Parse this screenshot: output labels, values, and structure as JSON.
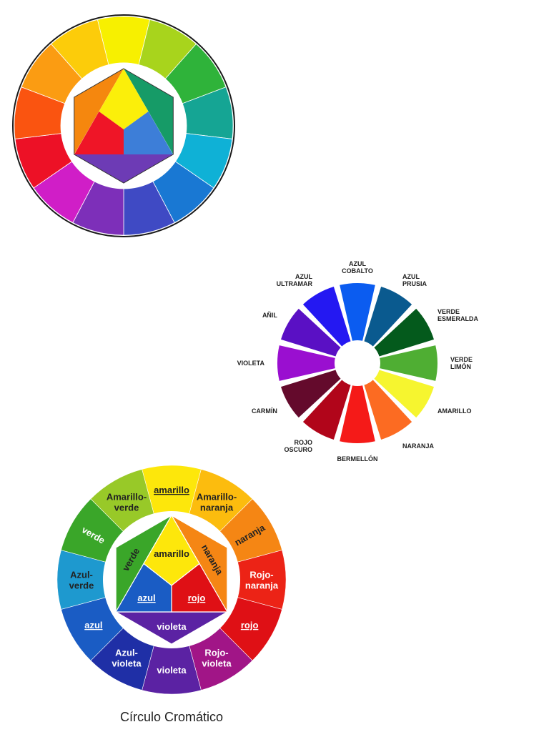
{
  "wheel1": {
    "outer_colors": [
      "#f7f000",
      "#a8d41c",
      "#2fb33a",
      "#15a594",
      "#0fb1d6",
      "#1978d3",
      "#3f4ac4",
      "#7d2fb9",
      "#d01ec7",
      "#ed1126",
      "#fa5410",
      "#fb9c12",
      "#fccc0a"
    ],
    "primary": {
      "yellow": "#fbef0a",
      "red": "#ef1527",
      "blue": "#3d7ed8"
    },
    "secondary": {
      "orange": "#f5870e",
      "green": "#169b67",
      "violet": "#6d3bb5"
    }
  },
  "wheel2": {
    "segments": [
      {
        "name": "AZUL COBALTO",
        "lines": [
          "AZUL",
          "COBALTO"
        ],
        "color": "#0b5cf0"
      },
      {
        "name": "AZUL PRUSIA",
        "lines": [
          "AZUL",
          "PRUSIA"
        ],
        "color": "#0a5a8f"
      },
      {
        "name": "VERDE ESMERALDA",
        "lines": [
          "VERDE",
          "ESMERALDA"
        ],
        "color": "#045a1c"
      },
      {
        "name": "VERDE LIMÓN",
        "lines": [
          "VERDE",
          "LIMÓN"
        ],
        "color": "#4fae33"
      },
      {
        "name": "AMARILLO",
        "lines": [
          "AMARILLO"
        ],
        "color": "#f6f52f"
      },
      {
        "name": "NARANJA",
        "lines": [
          "NARANJA"
        ],
        "color": "#fc6b22"
      },
      {
        "name": "BERMELLÓN",
        "lines": [
          "BERMELLÓN"
        ],
        "color": "#f51a18"
      },
      {
        "name": "ROJO OSCURO",
        "lines": [
          "ROJO",
          "OSCURO"
        ],
        "color": "#b1051a"
      },
      {
        "name": "CARMÍN",
        "lines": [
          "CARMÍN"
        ],
        "color": "#640a2c"
      },
      {
        "name": "VIOLETA",
        "lines": [
          "VIOLETA"
        ],
        "color": "#9a0fd0"
      },
      {
        "name": "AÑIL",
        "lines": [
          "AÑIL"
        ],
        "color": "#5a10c4"
      },
      {
        "name": "AZUL ULTRAMAR",
        "lines": [
          "AZUL",
          "ULTRAMAR"
        ],
        "color": "#2418f2"
      }
    ]
  },
  "wheel3": {
    "outer": [
      {
        "lines": [
          "amarillo"
        ],
        "color": "#fde70b",
        "text": "#222222",
        "underline": true
      },
      {
        "lines": [
          "Amarillo-",
          "naranja"
        ],
        "color": "#fcbc0e",
        "text": "#222222",
        "underline": false
      },
      {
        "lines": [
          "naranja"
        ],
        "color": "#f58614",
        "text": "#222222",
        "underline": false,
        "rotate": true
      },
      {
        "lines": [
          "Rojo-",
          "naranja"
        ],
        "color": "#ec2316",
        "text": "#ffffff",
        "underline": false
      },
      {
        "lines": [
          "rojo"
        ],
        "color": "#df1015",
        "text": "#ffffff",
        "underline": true
      },
      {
        "lines": [
          "Rojo-",
          "violeta"
        ],
        "color": "#a11587",
        "text": "#ffffff",
        "underline": false
      },
      {
        "lines": [
          "violeta"
        ],
        "color": "#5b22a3",
        "text": "#ffffff",
        "underline": false
      },
      {
        "lines": [
          "Azul-",
          "violeta"
        ],
        "color": "#1f2fa6",
        "text": "#ffffff",
        "underline": false
      },
      {
        "lines": [
          "azul"
        ],
        "color": "#1a5cc4",
        "text": "#ffffff",
        "underline": true
      },
      {
        "lines": [
          "Azul-",
          "verde"
        ],
        "color": "#1e99cf",
        "text": "#222222",
        "underline": false
      },
      {
        "lines": [
          "verde"
        ],
        "color": "#3aa629",
        "text": "#ffffff",
        "underline": false,
        "rotate": true
      },
      {
        "lines": [
          "Amarillo-",
          "verde"
        ],
        "color": "#98c928",
        "text": "#222222",
        "underline": false
      }
    ],
    "inner": {
      "amarillo": {
        "label": "amarillo",
        "color": "#fde70b"
      },
      "naranja": {
        "label": "naranja",
        "color": "#f58614"
      },
      "rojo": {
        "label": "rojo",
        "color": "#df1015"
      },
      "violeta": {
        "label": "violeta",
        "color": "#5b22a3"
      },
      "azul": {
        "label": "azul",
        "color": "#1a5cc4"
      },
      "verde": {
        "label": "verde",
        "color": "#3aa629"
      }
    }
  },
  "caption": "Círculo Cromático"
}
